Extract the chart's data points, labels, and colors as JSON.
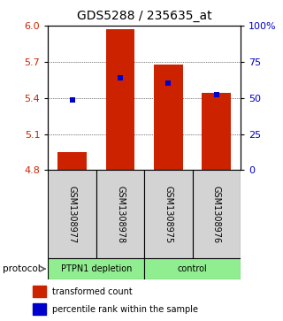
{
  "title": "GDS5288 / 235635_at",
  "samples": [
    "GSM1308977",
    "GSM1308978",
    "GSM1308975",
    "GSM1308976"
  ],
  "bar_tops": [
    4.95,
    5.97,
    5.68,
    5.44
  ],
  "bar_base": 4.8,
  "percentile_values": [
    5.38,
    5.565,
    5.525,
    5.425
  ],
  "ylim_left": [
    4.8,
    6.0
  ],
  "yticks_left": [
    4.8,
    5.1,
    5.4,
    5.7,
    6.0
  ],
  "ylim_right": [
    0,
    100
  ],
  "yticks_right": [
    0,
    25,
    50,
    75,
    100
  ],
  "bar_color": "#cc2200",
  "square_color": "#0000cc",
  "protocol_groups": [
    {
      "label": "PTPN1 depletion",
      "start": 0,
      "end": 2,
      "color": "#90ee90"
    },
    {
      "label": "control",
      "start": 2,
      "end": 4,
      "color": "#90ee90"
    }
  ],
  "protocol_label": "protocol",
  "legend_bar_label": "transformed count",
  "legend_sq_label": "percentile rank within the sample",
  "title_fontsize": 10,
  "tick_fontsize": 8,
  "sample_fontsize": 7,
  "legend_fontsize": 7
}
